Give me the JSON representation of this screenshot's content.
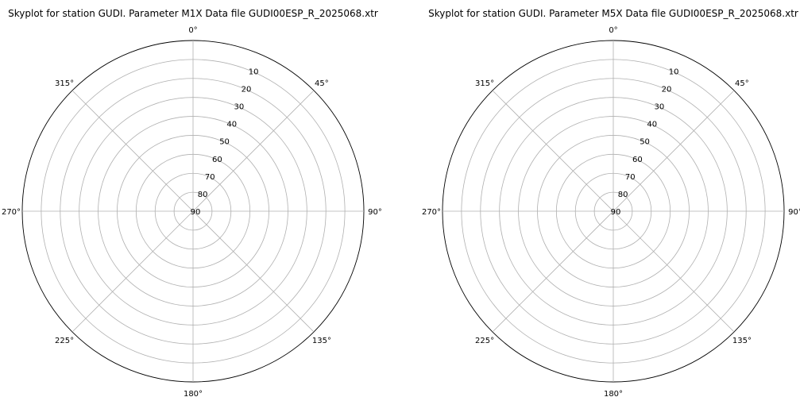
{
  "chart_data": [
    {
      "type": "polar",
      "title": "Skyplot for station GUDI.    Parameter  M1X    Data file GUDI00ESP_R_2025068.xtr",
      "theta_direction": "clockwise",
      "theta_zero": "N",
      "theta_tick_labels": [
        "0°",
        "45°",
        "90°",
        "135°",
        "180°",
        "225°",
        "270°",
        "315°"
      ],
      "r_tick_labels": [
        "10",
        "20",
        "30",
        "40",
        "50",
        "60",
        "70",
        "80",
        "90"
      ],
      "r_tick_values": [
        10,
        20,
        30,
        40,
        50,
        60,
        70,
        80,
        90
      ],
      "rlim": [
        0,
        90
      ],
      "r_inverted": true,
      "grid": true,
      "series": []
    },
    {
      "type": "polar",
      "title": "Skyplot for station GUDI.    Parameter  M5X    Data file GUDI00ESP_R_2025068.xtr",
      "theta_direction": "clockwise",
      "theta_zero": "N",
      "theta_tick_labels": [
        "0°",
        "45°",
        "90°",
        "135°",
        "180°",
        "225°",
        "270°",
        "315°"
      ],
      "r_tick_labels": [
        "10",
        "20",
        "30",
        "40",
        "50",
        "60",
        "70",
        "80",
        "90"
      ],
      "r_tick_values": [
        10,
        20,
        30,
        40,
        50,
        60,
        70,
        80,
        90
      ],
      "rlim": [
        0,
        90
      ],
      "r_inverted": true,
      "grid": true,
      "series": []
    }
  ]
}
